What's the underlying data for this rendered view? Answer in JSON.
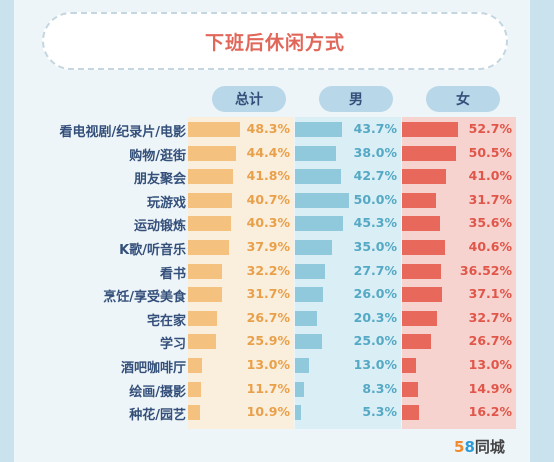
{
  "title": "下班后休闲方式",
  "headers": {
    "total": "总计",
    "male": "男",
    "female": "女"
  },
  "logo": {
    "five": "5",
    "eight": "8",
    "text": "同城"
  },
  "colors": {
    "total_bar": "#f5c17e",
    "total_text": "#e9a04a",
    "total_bg": "#faeedc",
    "male_bar": "#90c9dc",
    "male_text": "#55a9c4",
    "male_bg": "#d9eef5",
    "female_bar": "#e8695c",
    "female_text": "#e0564a",
    "female_bg": "#f6d3ce"
  },
  "chart_data": {
    "type": "bar",
    "categories": [
      "看电视剧/纪录片/电影",
      "购物/逛街",
      "朋友聚会",
      "玩游戏",
      "运动锻炼",
      "K歌/听音乐",
      "看书",
      "烹饪/享受美食",
      "宅在家",
      "学习",
      "酒吧咖啡厅",
      "绘画/摄影",
      "种花/园艺"
    ],
    "series": [
      {
        "name": "总计",
        "values": [
          48.3,
          44.4,
          41.8,
          40.7,
          40.3,
          37.9,
          32.2,
          31.7,
          26.7,
          25.9,
          13.0,
          11.7,
          10.9
        ],
        "labels": [
          "48.3%",
          "44.4%",
          "41.8%",
          "40.7%",
          "40.3%",
          "37.9%",
          "32.2%",
          "31.7%",
          "26.7%",
          "25.9%",
          "13.0%",
          "11.7%",
          "10.9%"
        ]
      },
      {
        "name": "男",
        "values": [
          43.7,
          38.0,
          42.7,
          50.0,
          45.3,
          35.0,
          27.7,
          26.0,
          20.3,
          25.0,
          13.0,
          8.3,
          5.3
        ],
        "labels": [
          "43.7%",
          "38.0%",
          "42.7%",
          "50.0%",
          "45.3%",
          "35.0%",
          "27.7%",
          "26.0%",
          "20.3%",
          "25.0%",
          "13.0%",
          "8.3%",
          "5.3%"
        ]
      },
      {
        "name": "女",
        "values": [
          52.7,
          50.5,
          41.0,
          31.7,
          35.6,
          40.6,
          36.52,
          37.1,
          32.7,
          26.7,
          13.0,
          14.9,
          16.2
        ],
        "labels": [
          "52.7%",
          "50.5%",
          "41.0%",
          "31.7%",
          "35.6%",
          "40.6%",
          "36.52%",
          "37.1%",
          "32.7%",
          "26.7%",
          "13.0%",
          "14.9%",
          "16.2%"
        ]
      }
    ]
  }
}
